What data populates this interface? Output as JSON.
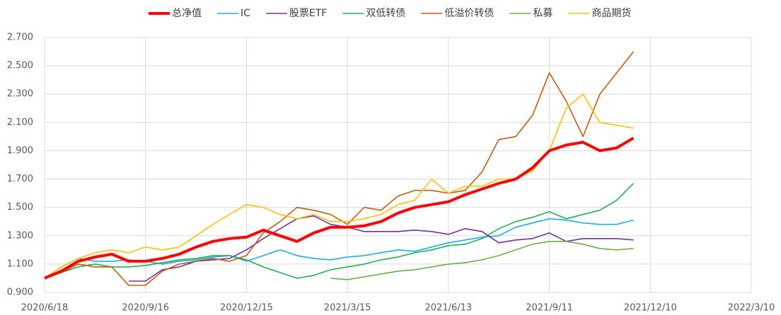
{
  "chart_data": {
    "type": "line",
    "x": [
      "2020/6/18",
      "2020/7/3",
      "2020/7/18",
      "2020/8/2",
      "2020/8/17",
      "2020/9/1",
      "2020/9/16",
      "2020/10/1",
      "2020/10/16",
      "2020/10/31",
      "2020/11/15",
      "2020/11/30",
      "2020/12/15",
      "2020/12/30",
      "2021/1/14",
      "2021/1/29",
      "2021/2/13",
      "2021/2/28",
      "2021/3/15",
      "2021/3/30",
      "2021/4/14",
      "2021/4/29",
      "2021/5/14",
      "2021/5/29",
      "2021/6/13",
      "2021/6/28",
      "2021/7/13",
      "2021/7/28",
      "2021/8/12",
      "2021/8/27",
      "2021/9/11",
      "2021/9/26",
      "2021/10/11",
      "2021/10/26",
      "2021/11/10",
      "2021/11/25"
    ],
    "series": [
      {
        "name": "总净值",
        "color": "#ff0000",
        "width": 4,
        "values": [
          1.0,
          1.05,
          1.12,
          1.15,
          1.17,
          1.12,
          1.12,
          1.14,
          1.17,
          1.22,
          1.26,
          1.28,
          1.29,
          1.34,
          1.3,
          1.26,
          1.32,
          1.36,
          1.36,
          1.37,
          1.4,
          1.46,
          1.5,
          1.52,
          1.54,
          1.59,
          1.63,
          1.67,
          1.7,
          1.78,
          1.9,
          1.94,
          1.96,
          1.9,
          1.92,
          1.99
        ]
      },
      {
        "name": "IC",
        "color": "#1eaaf1",
        "width": 1.6,
        "values": [
          1.0,
          1.08,
          1.14,
          1.12,
          1.12,
          1.13,
          1.12,
          1.1,
          1.12,
          1.13,
          1.15,
          1.16,
          1.12,
          1.16,
          1.2,
          1.16,
          1.14,
          1.13,
          1.15,
          1.16,
          1.18,
          1.2,
          1.19,
          1.22,
          1.25,
          1.27,
          1.29,
          1.3,
          1.36,
          1.39,
          1.42,
          1.41,
          1.39,
          1.38,
          1.38,
          1.41
        ]
      },
      {
        "name": "股票ETF",
        "color": "#7030a0",
        "width": 1.6,
        "values": [
          null,
          null,
          null,
          null,
          null,
          0.98,
          0.98,
          1.06,
          1.08,
          1.12,
          1.13,
          1.14,
          1.2,
          1.28,
          1.35,
          1.42,
          1.44,
          1.38,
          1.36,
          1.33,
          1.33,
          1.33,
          1.34,
          1.33,
          1.31,
          1.35,
          1.33,
          1.25,
          1.27,
          1.28,
          1.32,
          1.26,
          1.28,
          1.28,
          1.28,
          1.27
        ]
      },
      {
        "name": "双低转债",
        "color": "#1fb050",
        "width": 1.6,
        "values": [
          1.0,
          1.04,
          1.08,
          1.1,
          1.08,
          1.08,
          1.09,
          1.11,
          1.13,
          1.14,
          1.16,
          1.16,
          1.13,
          1.08,
          1.04,
          1.0,
          1.02,
          1.06,
          1.08,
          1.1,
          1.13,
          1.15,
          1.18,
          1.2,
          1.23,
          1.24,
          1.28,
          1.35,
          1.4,
          1.43,
          1.47,
          1.42,
          1.45,
          1.48,
          1.55,
          1.67
        ]
      },
      {
        "name": "低溢价转债",
        "color": "#c55a11",
        "width": 1.6,
        "values": [
          1.0,
          1.04,
          1.1,
          1.08,
          1.08,
          0.95,
          0.95,
          1.05,
          1.1,
          1.12,
          1.14,
          1.12,
          1.16,
          1.32,
          1.4,
          1.5,
          1.48,
          1.45,
          1.38,
          1.5,
          1.48,
          1.58,
          1.62,
          1.62,
          1.6,
          1.62,
          1.75,
          1.98,
          2.0,
          2.15,
          2.45,
          2.25,
          2.0,
          2.3,
          2.45,
          2.6
        ]
      },
      {
        "name": "私募",
        "color": "#70ad47",
        "width": 1.6,
        "values": [
          null,
          null,
          null,
          null,
          null,
          null,
          null,
          null,
          null,
          null,
          null,
          null,
          null,
          null,
          null,
          null,
          null,
          1.0,
          0.99,
          1.01,
          1.03,
          1.05,
          1.06,
          1.08,
          1.1,
          1.11,
          1.13,
          1.16,
          1.2,
          1.24,
          1.26,
          1.26,
          1.24,
          1.21,
          1.2,
          1.21
        ]
      },
      {
        "name": "商品期货",
        "color": "#ffc000",
        "width": 1.6,
        "values": [
          1.0,
          1.08,
          1.14,
          1.18,
          1.2,
          1.18,
          1.22,
          1.2,
          1.22,
          1.3,
          1.38,
          1.45,
          1.52,
          1.5,
          1.45,
          1.42,
          1.45,
          1.4,
          1.4,
          1.42,
          1.45,
          1.52,
          1.55,
          1.7,
          1.6,
          1.65,
          1.65,
          1.7,
          1.7,
          1.76,
          1.9,
          2.2,
          2.3,
          2.1,
          2.08,
          2.06
        ]
      }
    ],
    "xlim": [
      "2020/6/18",
      "2022/3/10"
    ],
    "xticks": [
      "2020/6/18",
      "2020/9/16",
      "2020/12/15",
      "2021/3/15",
      "2021/6/13",
      "2021/9/11",
      "2021/12/10",
      "2022/3/10"
    ],
    "ylim": [
      0.9,
      2.7
    ],
    "yticks": [
      {
        "value": 0.9,
        "label": "0.900"
      },
      {
        "value": 1.1,
        "label": "1.100"
      },
      {
        "value": 1.3,
        "label": "1.300"
      },
      {
        "value": 1.5,
        "label": "1.500"
      },
      {
        "value": 1.7,
        "label": "1.700"
      },
      {
        "value": 1.9,
        "label": "1.900"
      },
      {
        "value": 2.1,
        "label": "2.100"
      },
      {
        "value": 2.3,
        "label": "2.300"
      },
      {
        "value": 2.5,
        "label": "2.500"
      },
      {
        "value": 2.7,
        "label": "2.700"
      }
    ],
    "grid": true,
    "legend": "top"
  }
}
